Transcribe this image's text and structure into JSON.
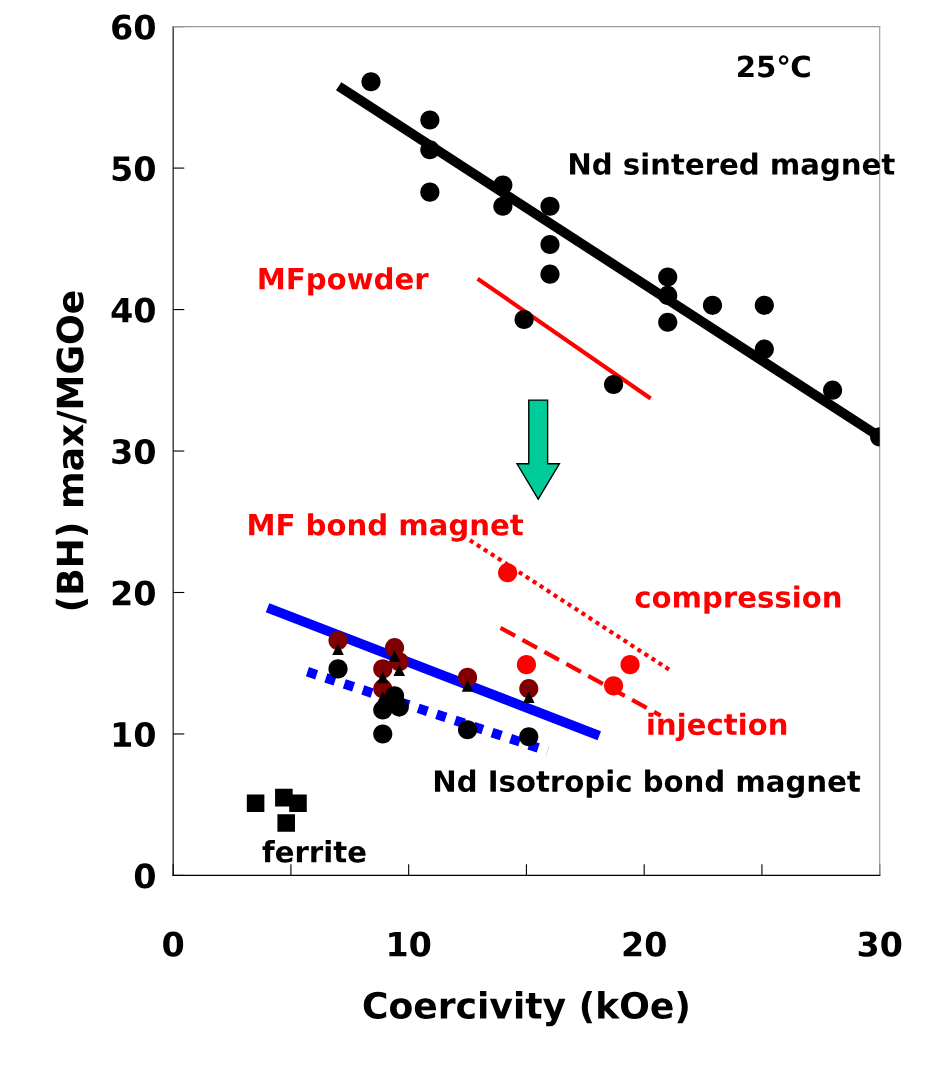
{
  "chart_data": {
    "type": "scatter",
    "xlabel": "Coercivity (kOe)",
    "ylabel": "(BH) max/MGOe",
    "xlim": [
      0,
      30
    ],
    "ylim": [
      0,
      60
    ],
    "xticks": [
      0,
      {
        "value": 5,
        "label": null
      },
      10,
      {
        "value": 15,
        "label": null
      },
      20,
      {
        "value": 25,
        "label": null
      },
      30
    ],
    "yticks": [
      0,
      10,
      20,
      30,
      40,
      50,
      60
    ],
    "grid": false,
    "legend": false,
    "series": [
      {
        "type": "line",
        "color": "#000000",
        "line_style": "solid",
        "x": [
          7.2,
          30.0
        ],
        "values": [
          55.6,
          31.0
        ]
      },
      {
        "color": "#000000",
        "marker": "circle",
        "x": [
          8.4,
          10.9,
          10.9,
          10.9,
          14.0,
          14.0,
          16.0,
          16.0,
          16.0,
          21.0,
          21.0,
          21.0,
          22.9,
          25.1,
          25.1,
          28.0,
          30.0
        ],
        "values": [
          56.1,
          53.4,
          51.3,
          48.3,
          48.8,
          47.3,
          47.3,
          44.6,
          42.5,
          42.3,
          41.0,
          39.1,
          40.3,
          40.3,
          37.2,
          34.3,
          31.0
        ]
      },
      {
        "type": "line",
        "color": "#ff0000",
        "line_style": "solid",
        "x": [
          13.0,
          20.2
        ],
        "values": [
          42.1,
          33.8
        ]
      },
      {
        "color": "#000000",
        "marker": "circle",
        "x": [
          14.9,
          18.7
        ],
        "values": [
          39.3,
          34.7
        ]
      },
      {
        "type": "line",
        "color": "#ff0000",
        "line_style": "dotted",
        "x": [
          12.6,
          21.1
        ],
        "values": [
          23.7,
          14.5
        ]
      },
      {
        "color": "#ff0000",
        "marker": "circle",
        "x": [
          14.2,
          19.4
        ],
        "values": [
          21.4,
          14.9
        ]
      },
      {
        "type": "line",
        "color": "#ff0000",
        "line_style": "dashed",
        "x": [
          13.9,
          20.7
        ],
        "values": [
          17.5,
          11.3
        ]
      },
      {
        "color": "#ff0000",
        "marker": "circle",
        "x": [
          15.0,
          18.7
        ],
        "values": [
          14.9,
          13.4
        ]
      },
      {
        "type": "line",
        "color": "#0000ff",
        "line_style": "solid",
        "x": [
          4.2,
          17.9
        ],
        "values": [
          18.8,
          10.0
        ]
      },
      {
        "type": "line",
        "color": "#0000ff",
        "line_style": "dotted",
        "x": [
          5.7,
          15.9
        ],
        "values": [
          14.4,
          8.8
        ]
      },
      {
        "color": "#800000",
        "marker": "circle",
        "x": [
          7.0,
          9.4,
          9.6,
          8.9,
          8.9,
          12.5,
          15.1
        ],
        "values": [
          16.6,
          16.1,
          15.1,
          14.6,
          13.2,
          14.0,
          13.2
        ]
      },
      {
        "color": "#000000",
        "marker": "triangle",
        "x": [
          7.0,
          9.4,
          9.6,
          8.9,
          8.9,
          12.5,
          15.1
        ],
        "values": [
          16.0,
          15.5,
          14.5,
          14.0,
          12.6,
          13.4,
          12.6
        ]
      },
      {
        "color": "#000000",
        "marker": "circle",
        "x": [
          7.0,
          9.4,
          9.6,
          8.9,
          8.9,
          12.5,
          15.1
        ],
        "values": [
          14.6,
          12.7,
          11.9,
          11.7,
          10.0,
          10.3,
          9.8
        ]
      },
      {
        "color": "#000000",
        "marker": "square",
        "x": [
          3.5,
          4.7,
          5.3,
          4.8
        ],
        "values": [
          5.1,
          5.5,
          5.1,
          3.7
        ]
      }
    ],
    "annotations": [
      "25℃",
      "Nd sintered magnet",
      "MFpowder",
      "MF bond magnet",
      "compression",
      "injection",
      "Nd Isotropic bond magnet",
      "ferrite"
    ]
  }
}
